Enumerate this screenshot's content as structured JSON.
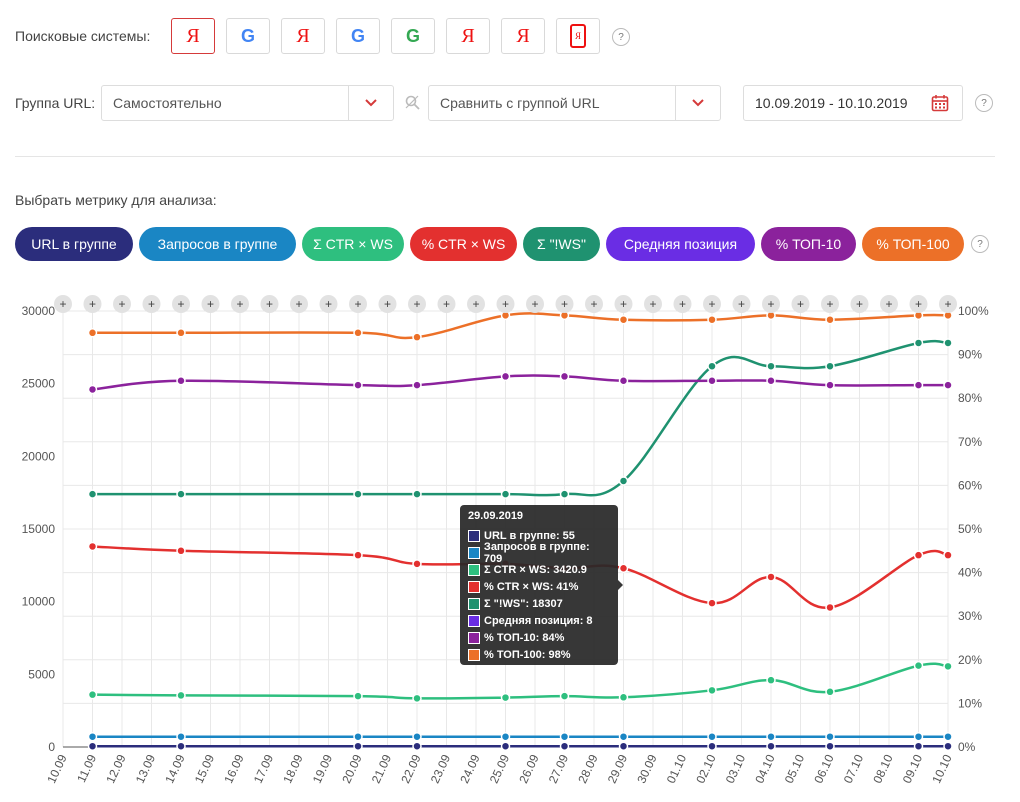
{
  "filters": {
    "search_engines_label": "Поисковые системы:",
    "engines": [
      {
        "type": "yandex",
        "glyph": "Я",
        "active": true
      },
      {
        "type": "google",
        "glyph": "G",
        "active": false
      },
      {
        "type": "yandex",
        "glyph": "Я",
        "active": false
      },
      {
        "type": "google",
        "glyph": "G",
        "active": false
      },
      {
        "type": "google",
        "glyph": "G",
        "active": false
      },
      {
        "type": "yandex",
        "glyph": "Я",
        "active": false
      },
      {
        "type": "yandex",
        "glyph": "Я",
        "active": false
      },
      {
        "type": "yandex-mobile",
        "glyph": "Я",
        "active": false
      }
    ],
    "help_glyph": "?",
    "url_group_label": "Группа URL:",
    "url_group_value": "Самостоятельно",
    "compare_placeholder": "Сравнить с группой URL",
    "date_range": "10.09.2019 - 10.10.2019",
    "metric_label": "Выбрать метрику для анализа:"
  },
  "metrics": [
    {
      "label": "URL в группе",
      "color": "#2b2d7c"
    },
    {
      "label": "Запросов в группе",
      "color": "#1a86c4"
    },
    {
      "label": "Σ CTR × WS",
      "color": "#2ebf7f"
    },
    {
      "label": "% CTR × WS",
      "color": "#e3302f"
    },
    {
      "label": "Σ \"!WS\"",
      "color": "#1f9270"
    },
    {
      "label": "Средняя позиция",
      "color": "#6a2de4"
    },
    {
      "label": "% ТОП-10",
      "color": "#8b229c"
    },
    {
      "label": "% ТОП-100",
      "color": "#ec7028"
    }
  ],
  "chart_data": {
    "type": "line",
    "x": [
      "10.09",
      "11.09",
      "12.09",
      "13.09",
      "14.09",
      "15.09",
      "16.09",
      "17.09",
      "18.09",
      "19.09",
      "20.09",
      "21.09",
      "22.09",
      "23.09",
      "24.09",
      "25.09",
      "26.09",
      "27.09",
      "28.09",
      "29.09",
      "30.09",
      "01.10",
      "02.10",
      "03.10",
      "04.10",
      "05.10",
      "06.10",
      "07.10",
      "08.10",
      "09.10",
      "10.10"
    ],
    "y_left": {
      "ticks": [
        "0",
        "5000",
        "10000",
        "15000",
        "20000",
        "25000",
        "30000"
      ],
      "ylim": [
        0,
        30000
      ]
    },
    "y_right": {
      "ticks": [
        "0%",
        "10%",
        "20%",
        "30%",
        "40%",
        "50%",
        "60%",
        "70%",
        "80%",
        "90%",
        "100%"
      ],
      "ylim": [
        0,
        100
      ]
    },
    "grid": true,
    "add_marker": "+",
    "series": [
      {
        "name": "URL в группе",
        "axis": "left",
        "color": "#2b2d7c",
        "points": [
          [
            1,
            55
          ],
          [
            4,
            55
          ],
          [
            10,
            55
          ],
          [
            12,
            55
          ],
          [
            15,
            55
          ],
          [
            17,
            55
          ],
          [
            19,
            55
          ],
          [
            22,
            55
          ],
          [
            24,
            55
          ],
          [
            26,
            55
          ],
          [
            29,
            55
          ],
          [
            30,
            55
          ]
        ]
      },
      {
        "name": "Запросов в группе",
        "axis": "left",
        "color": "#1a86c4",
        "points": [
          [
            1,
            709
          ],
          [
            4,
            709
          ],
          [
            10,
            709
          ],
          [
            12,
            709
          ],
          [
            15,
            709
          ],
          [
            17,
            709
          ],
          [
            19,
            709
          ],
          [
            22,
            709
          ],
          [
            24,
            709
          ],
          [
            26,
            709
          ],
          [
            29,
            709
          ],
          [
            30,
            709
          ]
        ]
      },
      {
        "name": "Σ CTR × WS",
        "axis": "left",
        "color": "#2ebf7f",
        "points": [
          [
            1,
            3600
          ],
          [
            4,
            3550
          ],
          [
            10,
            3500
          ],
          [
            12,
            3350
          ],
          [
            15,
            3400
          ],
          [
            17,
            3500
          ],
          [
            19,
            3420.9
          ],
          [
            22,
            3900
          ],
          [
            24,
            4600
          ],
          [
            26,
            3800
          ],
          [
            29,
            5600
          ],
          [
            30,
            5550
          ]
        ]
      },
      {
        "name": "% CTR × WS",
        "axis": "right",
        "color": "#e3302f",
        "points": [
          [
            1,
            46
          ],
          [
            4,
            45
          ],
          [
            10,
            44
          ],
          [
            12,
            42
          ],
          [
            15,
            42
          ],
          [
            17,
            41
          ],
          [
            19,
            41
          ],
          [
            22,
            33
          ],
          [
            24,
            39
          ],
          [
            26,
            32
          ],
          [
            29,
            44
          ],
          [
            30,
            44
          ]
        ]
      },
      {
        "name": "Σ \"!WS\"",
        "axis": "left",
        "color": "#1f9270",
        "points": [
          [
            1,
            17400
          ],
          [
            4,
            17400
          ],
          [
            10,
            17400
          ],
          [
            12,
            17400
          ],
          [
            15,
            17400
          ],
          [
            17,
            17400
          ],
          [
            19,
            18307
          ],
          [
            22,
            26200
          ],
          [
            24,
            26200
          ],
          [
            26,
            26200
          ],
          [
            29,
            27800
          ],
          [
            30,
            27800
          ]
        ]
      },
      {
        "name": "% ТОП-10",
        "axis": "right",
        "color": "#8b229c",
        "points": [
          [
            1,
            82
          ],
          [
            4,
            84
          ],
          [
            10,
            83
          ],
          [
            12,
            83
          ],
          [
            15,
            85
          ],
          [
            17,
            85
          ],
          [
            19,
            84
          ],
          [
            22,
            84
          ],
          [
            24,
            84
          ],
          [
            26,
            83
          ],
          [
            29,
            83
          ],
          [
            30,
            83
          ]
        ]
      },
      {
        "name": "% ТОП-100",
        "axis": "right",
        "color": "#ec7028",
        "points": [
          [
            1,
            95
          ],
          [
            4,
            95
          ],
          [
            10,
            95
          ],
          [
            12,
            94
          ],
          [
            15,
            99
          ],
          [
            17,
            99
          ],
          [
            19,
            98
          ],
          [
            22,
            98
          ],
          [
            24,
            99
          ],
          [
            26,
            98
          ],
          [
            29,
            99
          ],
          [
            30,
            99
          ]
        ]
      }
    ],
    "tooltip": {
      "title": "29.09.2019",
      "rows": [
        {
          "text": "URL в группе: 55",
          "color": "#2b2d7c"
        },
        {
          "text": "Запросов в группе: 709",
          "color": "#1a86c4"
        },
        {
          "text": "Σ CTR × WS: 3420.9",
          "color": "#2ebf7f"
        },
        {
          "text": "% CTR × WS: 41%",
          "color": "#e3302f"
        },
        {
          "text": "Σ \"!WS\": 18307",
          "color": "#1f9270"
        },
        {
          "text": "Средняя позиция: 8",
          "color": "#6a2de4"
        },
        {
          "text": "% ТОП-10: 84%",
          "color": "#8b229c"
        },
        {
          "text": "% ТОП-100: 98%",
          "color": "#ec7028"
        }
      ]
    }
  }
}
